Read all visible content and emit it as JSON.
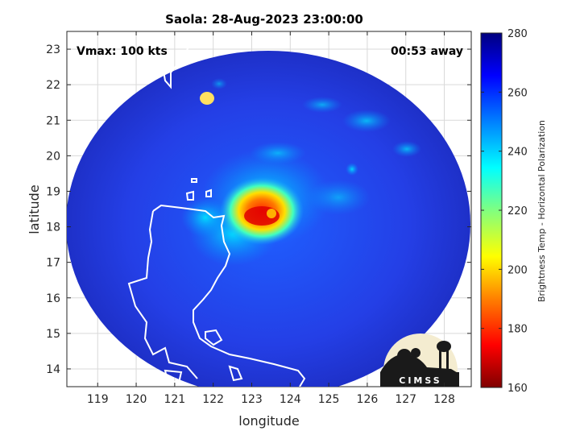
{
  "title": "Saola: 28-Aug-2023 23:00:00",
  "vmax_label": "Vmax: 100 kts",
  "away_label": "00:53 away",
  "xlabel": "longitude",
  "ylabel": "latitude",
  "xticks": [
    "119",
    "120",
    "121",
    "122",
    "123",
    "124",
    "125",
    "126",
    "127",
    "128"
  ],
  "yticks": [
    "14",
    "15",
    "16",
    "17",
    "18",
    "19",
    "20",
    "21",
    "22",
    "23"
  ],
  "colorbar": {
    "label": "Brightness Temp - Horizontal Polarization",
    "ticks": [
      "160",
      "180",
      "200",
      "220",
      "240",
      "260",
      "280"
    ],
    "range": [
      160,
      280
    ],
    "colors": [
      "#7f0000",
      "#ff0000",
      "#ff8000",
      "#ffff00",
      "#80ff80",
      "#00ffff",
      "#0080ff",
      "#0000ff",
      "#00007f"
    ]
  },
  "logo": {
    "text": "CIMSS"
  },
  "map": {
    "lon_range": [
      118.2,
      128.7
    ],
    "lat_range": [
      13.5,
      23.5
    ],
    "storm_center": {
      "lon": 123.2,
      "lat": 18.1
    },
    "swath_background_color": "#2a3fe0",
    "land_outline_color": "#ffffff"
  }
}
